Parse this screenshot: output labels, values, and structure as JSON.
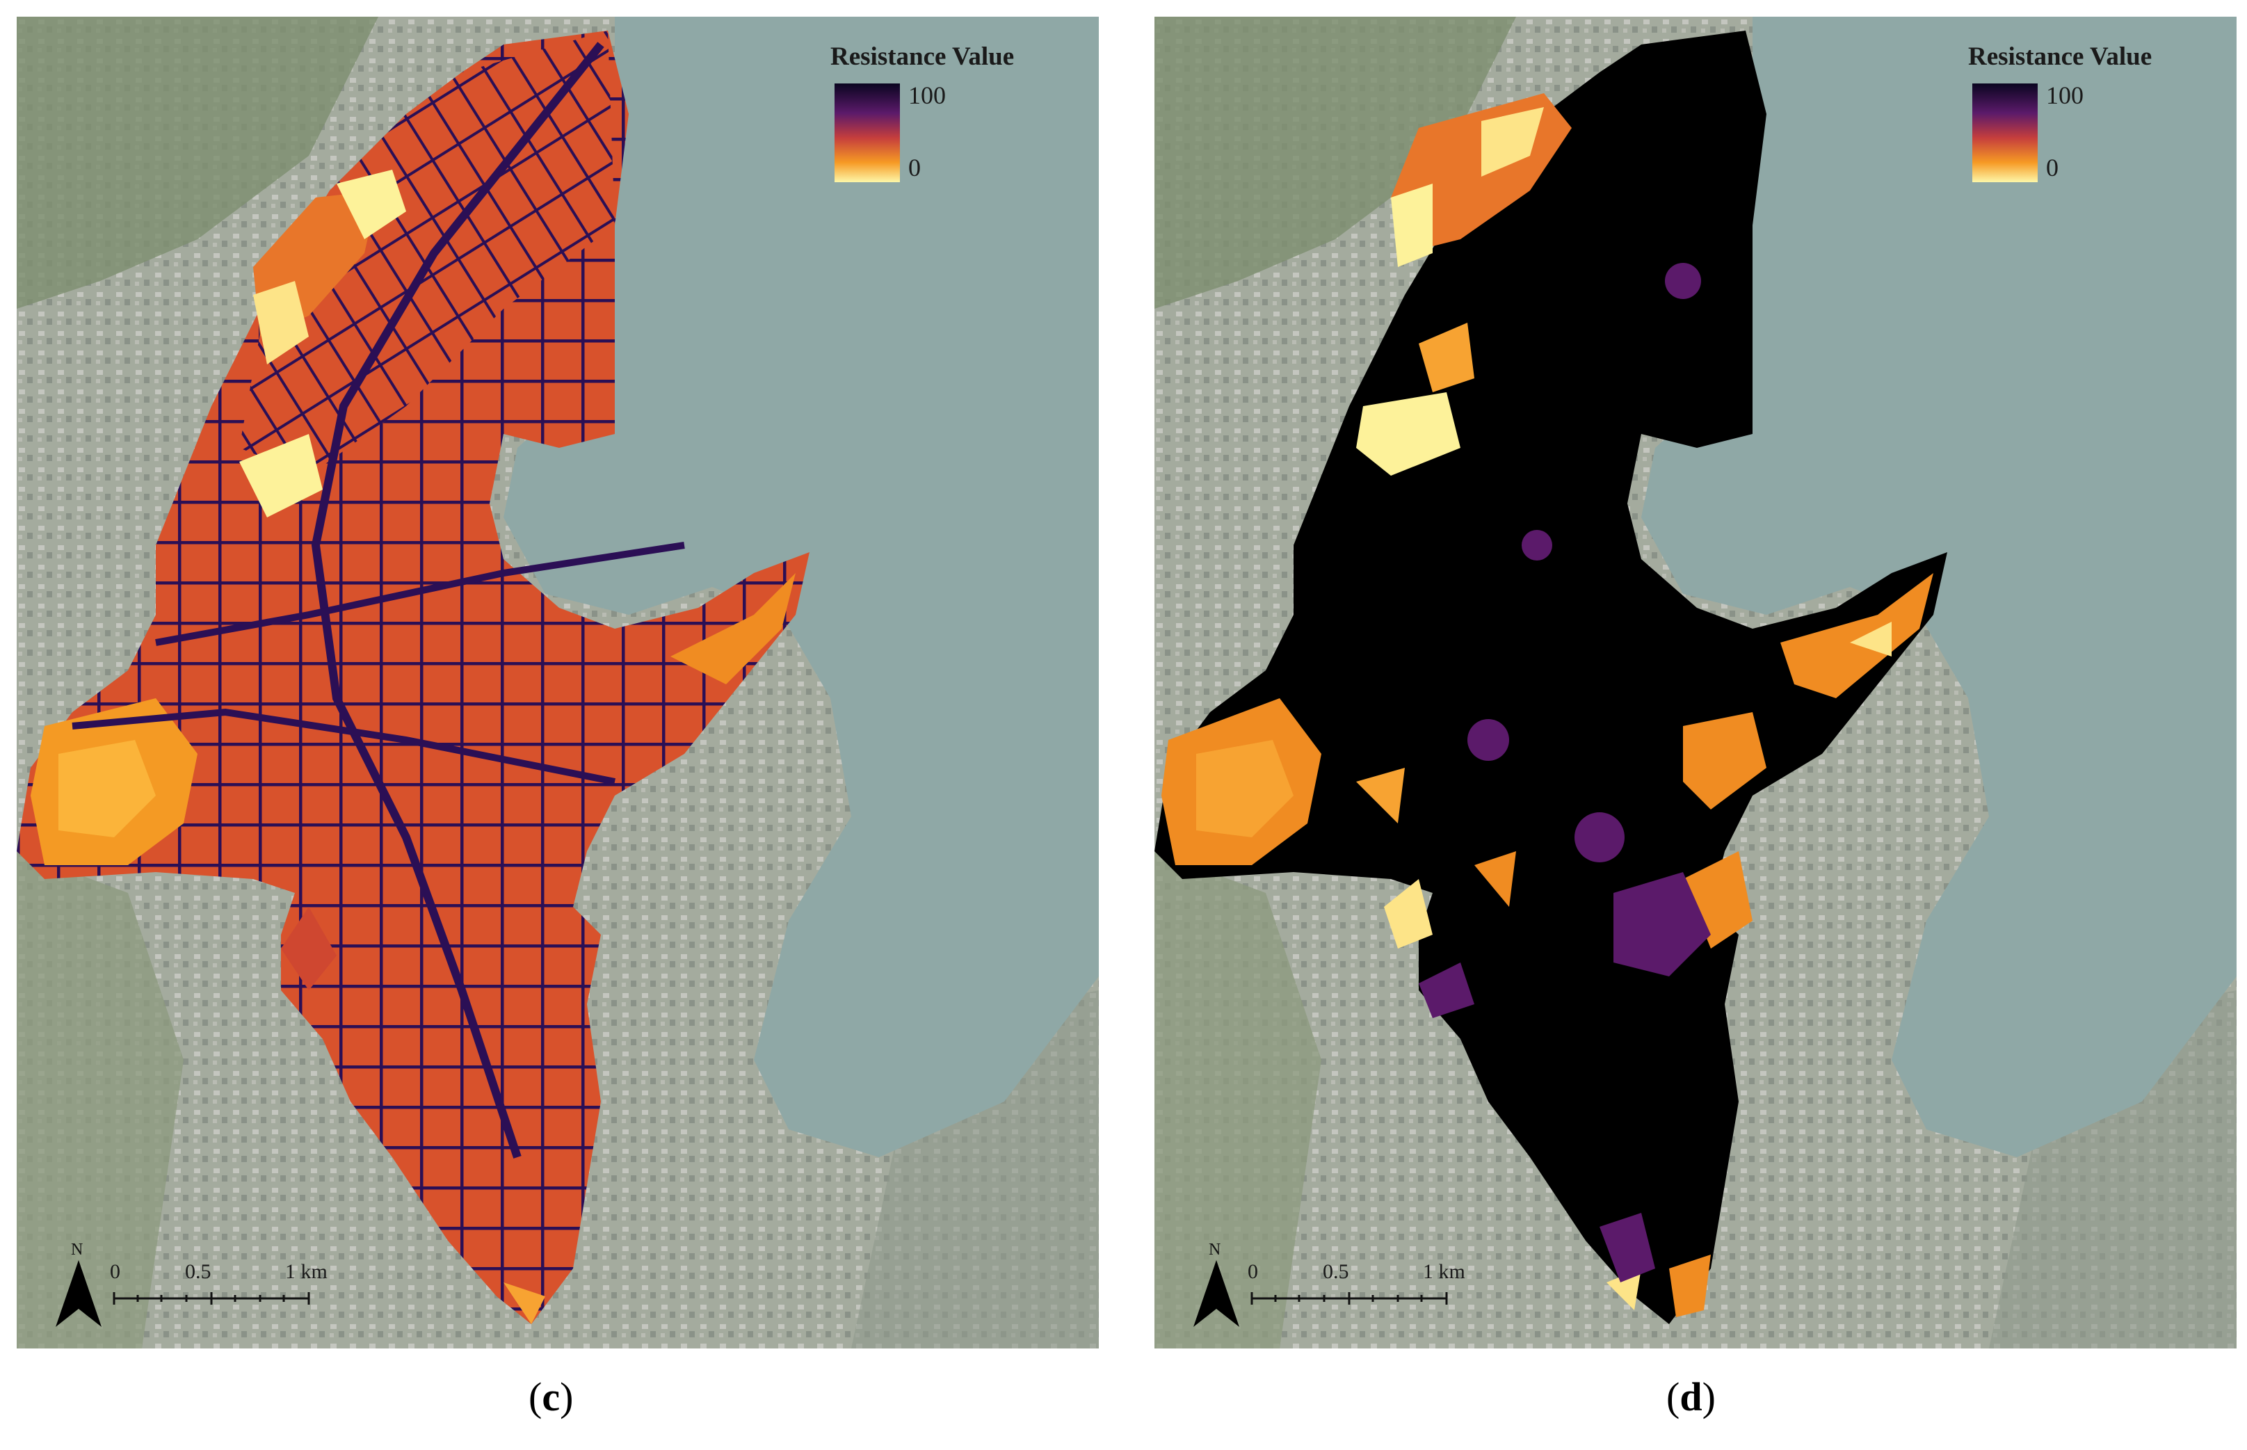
{
  "legend": {
    "title": "Resistance Value",
    "max_label": "100",
    "min_label": "0"
  },
  "scale": {
    "ticks": [
      "0",
      "0.5",
      "1 km"
    ]
  },
  "north_label": "N",
  "captions": {
    "c": "c",
    "d": "d"
  },
  "colors": {
    "high": "#1a0b3f",
    "mid": "#6b1f6e",
    "upper_mid": "#cf3f2e",
    "lower_mid": "#f08c22",
    "low": "#fdf5a0",
    "water": "#8fa8a6",
    "land": "#9ea79a",
    "black": "#000000"
  }
}
